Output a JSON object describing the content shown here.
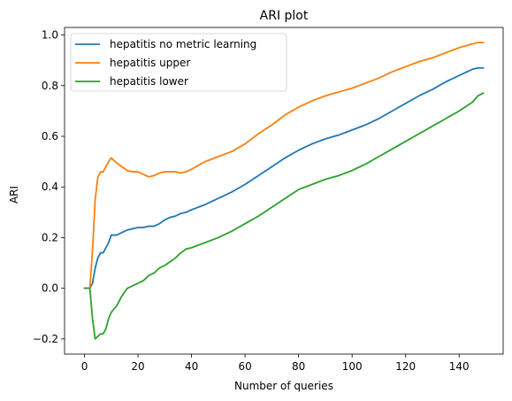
{
  "chart_data": {
    "type": "line",
    "title": "ARI plot",
    "xlabel": "Number of queries",
    "ylabel": "ARI",
    "xlim": [
      -7.45,
      156.45
    ],
    "ylim": [
      -0.26,
      1.03
    ],
    "grid": false,
    "legend_position": "upper-left",
    "xticks": [
      0,
      20,
      40,
      60,
      80,
      100,
      120,
      140
    ],
    "xtick_labels": [
      "0",
      "20",
      "40",
      "60",
      "80",
      "100",
      "120",
      "140"
    ],
    "yticks": [
      -0.2,
      0.0,
      0.2,
      0.4,
      0.6,
      0.8,
      1.0
    ],
    "ytick_labels": [
      "−0.2",
      "0.0",
      "0.2",
      "0.4",
      "0.6",
      "0.8",
      "1.0"
    ],
    "series": [
      {
        "name": "hepatitis no metric learning",
        "color": "#1f77b4",
        "x": [
          0,
          2,
          3,
          4,
          5,
          6,
          7,
          8,
          9,
          10,
          12,
          14,
          16,
          18,
          20,
          22,
          24,
          26,
          28,
          30,
          32,
          34,
          36,
          38,
          40,
          45,
          50,
          55,
          60,
          65,
          70,
          75,
          80,
          85,
          90,
          95,
          100,
          105,
          110,
          115,
          120,
          125,
          130,
          135,
          140,
          145,
          147,
          149
        ],
        "y": [
          0.0,
          0.0,
          0.02,
          0.08,
          0.12,
          0.14,
          0.14,
          0.16,
          0.18,
          0.21,
          0.21,
          0.22,
          0.23,
          0.235,
          0.24,
          0.24,
          0.245,
          0.245,
          0.255,
          0.27,
          0.28,
          0.285,
          0.295,
          0.3,
          0.31,
          0.33,
          0.355,
          0.38,
          0.41,
          0.445,
          0.48,
          0.515,
          0.545,
          0.57,
          0.59,
          0.605,
          0.625,
          0.645,
          0.67,
          0.7,
          0.73,
          0.76,
          0.785,
          0.815,
          0.84,
          0.865,
          0.87,
          0.87
        ]
      },
      {
        "name": "hepatitis upper",
        "color": "#ff7f0e",
        "x": [
          0,
          2,
          3,
          4,
          5,
          6,
          7,
          8,
          9,
          10,
          12,
          14,
          16,
          18,
          20,
          22,
          24,
          26,
          28,
          30,
          32,
          34,
          36,
          38,
          40,
          45,
          50,
          55,
          60,
          65,
          70,
          75,
          80,
          85,
          90,
          95,
          100,
          105,
          110,
          115,
          120,
          125,
          130,
          135,
          140,
          145,
          147,
          149
        ],
        "y": [
          0.0,
          0.0,
          0.15,
          0.35,
          0.44,
          0.46,
          0.46,
          0.48,
          0.5,
          0.515,
          0.495,
          0.48,
          0.465,
          0.46,
          0.46,
          0.45,
          0.44,
          0.445,
          0.455,
          0.46,
          0.46,
          0.46,
          0.455,
          0.46,
          0.47,
          0.5,
          0.52,
          0.54,
          0.57,
          0.61,
          0.645,
          0.685,
          0.715,
          0.74,
          0.76,
          0.775,
          0.79,
          0.81,
          0.83,
          0.855,
          0.875,
          0.895,
          0.91,
          0.93,
          0.95,
          0.965,
          0.97,
          0.97
        ]
      },
      {
        "name": "hepatitis lower",
        "color": "#2ca02c",
        "x": [
          0,
          2,
          3,
          4,
          5,
          6,
          7,
          8,
          9,
          10,
          12,
          14,
          16,
          18,
          20,
          22,
          24,
          26,
          28,
          30,
          32,
          34,
          36,
          38,
          40,
          45,
          50,
          55,
          60,
          65,
          70,
          75,
          80,
          85,
          90,
          95,
          100,
          105,
          110,
          115,
          120,
          125,
          130,
          135,
          140,
          145,
          147,
          149
        ],
        "y": [
          0.0,
          0.0,
          -0.12,
          -0.2,
          -0.19,
          -0.18,
          -0.18,
          -0.16,
          -0.12,
          -0.095,
          -0.07,
          -0.03,
          0.0,
          0.01,
          0.02,
          0.03,
          0.05,
          0.06,
          0.08,
          0.09,
          0.105,
          0.12,
          0.14,
          0.155,
          0.16,
          0.18,
          0.2,
          0.225,
          0.255,
          0.285,
          0.32,
          0.355,
          0.39,
          0.41,
          0.43,
          0.445,
          0.465,
          0.49,
          0.52,
          0.55,
          0.58,
          0.61,
          0.64,
          0.67,
          0.7,
          0.735,
          0.76,
          0.77
        ]
      }
    ]
  }
}
